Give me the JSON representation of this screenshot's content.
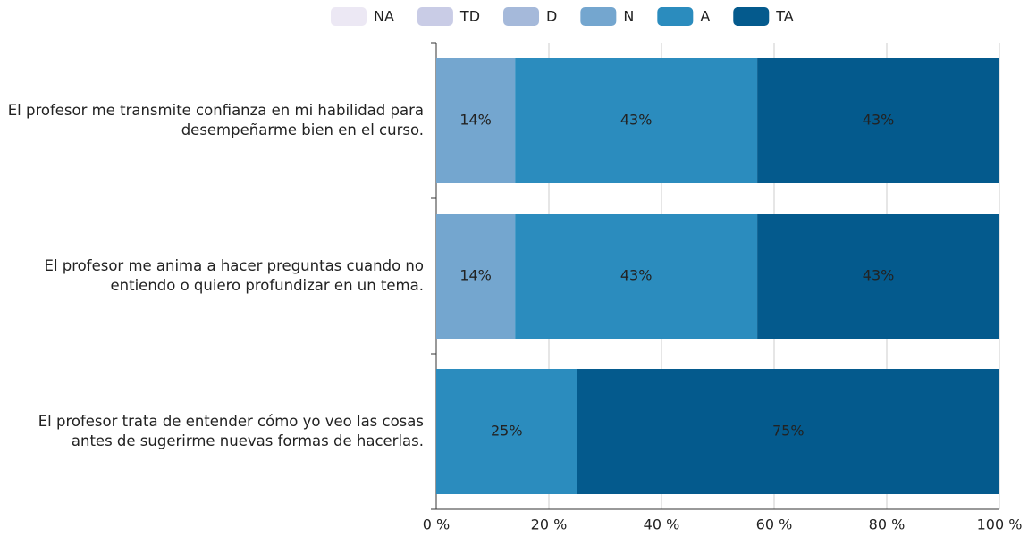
{
  "chart_data": {
    "type": "stacked-bar-horizontal",
    "categories": [
      "El profesor me transmite confianza en mi habilidad para desempeñarme bien en el curso.",
      "El profesor me anima a hacer preguntas cuando no entiendo o quiero profundizar en un tema.",
      "El profesor trata de entender cómo yo veo las cosas antes de sugerirme nuevas formas de hacerlas."
    ],
    "series": [
      {
        "name": "NA",
        "color": "#ece8f4",
        "values": [
          0,
          0,
          0
        ],
        "value_labels": [
          null,
          null,
          null
        ]
      },
      {
        "name": "TD",
        "color": "#c9cce6",
        "values": [
          0,
          0,
          0
        ],
        "value_labels": [
          null,
          null,
          null
        ]
      },
      {
        "name": "D",
        "color": "#a5b9da",
        "values": [
          0,
          0,
          0
        ],
        "value_labels": [
          null,
          null,
          null
        ]
      },
      {
        "name": "N",
        "color": "#74a6cf",
        "values": [
          14,
          14,
          0
        ],
        "value_labels": [
          "14%",
          "14%",
          null
        ]
      },
      {
        "name": "A",
        "color": "#2b8cbe",
        "values": [
          43,
          43,
          25
        ],
        "value_labels": [
          "43%",
          "43%",
          "25%"
        ]
      },
      {
        "name": "TA",
        "color": "#045a8d",
        "values": [
          43,
          43,
          75
        ],
        "value_labels": [
          "43%",
          "43%",
          "75%"
        ]
      }
    ],
    "xlim": [
      0,
      100
    ],
    "xticks": [
      {
        "value": 0,
        "label": "0 %"
      },
      {
        "value": 20,
        "label": "20 %"
      },
      {
        "value": 40,
        "label": "40 %"
      },
      {
        "value": 60,
        "label": "60 %"
      },
      {
        "value": 80,
        "label": "80 %"
      },
      {
        "value": 100,
        "label": "100 %"
      }
    ],
    "grid": true,
    "legend": "top"
  }
}
